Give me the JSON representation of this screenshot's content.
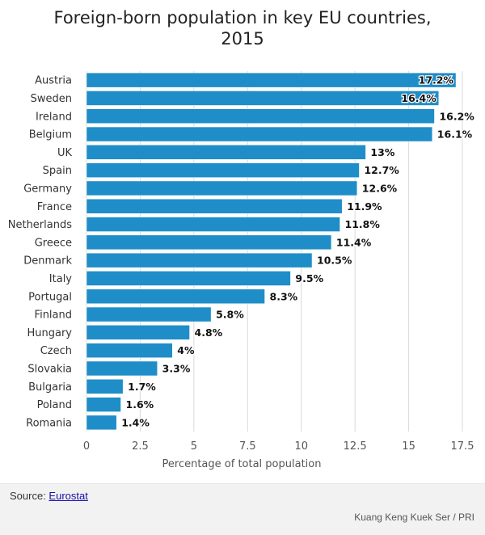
{
  "chart_data": {
    "type": "bar",
    "orientation": "horizontal",
    "title": "Foreign-born population in key EU countries, 2015",
    "xlabel": "Percentage of total population",
    "ylabel": "",
    "categories": [
      "Austria",
      "Sweden",
      "Ireland",
      "Belgium",
      "UK",
      "Spain",
      "Germany",
      "France",
      "Netherlands",
      "Greece",
      "Denmark",
      "Italy",
      "Portugal",
      "Finland",
      "Hungary",
      "Czech",
      "Slovakia",
      "Bulgaria",
      "Poland",
      "Romania"
    ],
    "values": [
      17.2,
      16.4,
      16.2,
      16.1,
      13,
      12.7,
      12.6,
      11.9,
      11.8,
      11.4,
      10.5,
      9.5,
      8.3,
      5.8,
      4.8,
      4,
      3.3,
      1.7,
      1.6,
      1.4
    ],
    "data_labels": [
      "17.2%",
      "16.4%",
      "16.2%",
      "16.1%",
      "13%",
      "12.7%",
      "12.6%",
      "11.9%",
      "11.8%",
      "11.4%",
      "10.5%",
      "9.5%",
      "8.3%",
      "5.8%",
      "4.8%",
      "4%",
      "3.3%",
      "1.7%",
      "1.6%",
      "1.4%"
    ],
    "xlim": [
      0,
      17.5
    ],
    "xticks": [
      0,
      2.5,
      5,
      7.5,
      10,
      12.5,
      15,
      17.5
    ],
    "xtick_labels": [
      "0",
      "2.5",
      "5",
      "7.5",
      "10",
      "12.5",
      "15",
      "17.5"
    ],
    "grid": true,
    "bar_color": "#1f8dc8"
  },
  "footer": {
    "source_prefix": "Source: ",
    "source_link": "Eurostat",
    "credit": "Kuang Keng Kuek Ser / PRI"
  }
}
